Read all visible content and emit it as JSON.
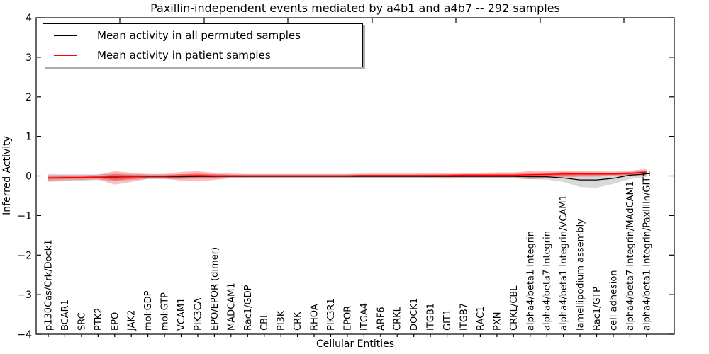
{
  "figure": {
    "title": "Paxillin-independent events mediated by a4b1 and a4b7 -- 292 samples",
    "xlabel": "Cellular Entities",
    "ylabel": "Inferred Activity"
  },
  "legend": {
    "entries": [
      {
        "label": "Mean activity in all permuted samples",
        "color": "#000000"
      },
      {
        "label": "Mean activity in patient samples",
        "color": "#ff0000"
      }
    ]
  },
  "chart_data": {
    "type": "line",
    "title": "Paxillin-independent events mediated by a4b1 and a4b7 -- 292 samples",
    "xlabel": "Cellular Entities",
    "ylabel": "Inferred Activity",
    "ylim": [
      -4,
      4
    ],
    "yticks": [
      4,
      3,
      2,
      1,
      0,
      -1,
      -2,
      -3,
      -4
    ],
    "ytick_labels": [
      "4",
      "3",
      "2",
      "1",
      "0",
      "−1",
      "−2",
      "−3",
      "−4"
    ],
    "grid": false,
    "legend_position": "upper left",
    "zero_reference_line": 0,
    "categories": [
      "p130Cas/Crk/Dock1",
      "BCAR1",
      "SRC",
      "PTK2",
      "EPO",
      "JAK2",
      "mol:GDP",
      "mol:GTP",
      "VCAM1",
      "PIK3CA",
      "EPO/EPOR (dimer)",
      "MADCAM1",
      "Rac1/GDP",
      "CBL",
      "PI3K",
      "CRK",
      "RHOA",
      "PIK3R1",
      "EPOR",
      "ITGA4",
      "ARF6",
      "CRKL",
      "DOCK1",
      "ITGB1",
      "GIT1",
      "ITGB7",
      "RAC1",
      "PXN",
      "CRKL/CBL",
      "alpha4/beta1 Integrin",
      "alpha4/beta7 Integrin",
      "alpha4/beta1 Integrin/VCAM1",
      "lamellipodium assembly",
      "Rac1/GTP",
      "cell adhesion",
      "alpha4/beta7 Integrin/MAdCAM1",
      "alpha4/beta1 Integrin/Paxillin/GIT1"
    ],
    "series": [
      {
        "name": "Mean activity in all permuted samples",
        "color": "#000000",
        "band_color": "#aaaaaa",
        "values": [
          -0.05,
          -0.05,
          -0.04,
          -0.03,
          -0.03,
          -0.02,
          -0.02,
          -0.02,
          -0.02,
          -0.01,
          -0.01,
          -0.01,
          -0.01,
          -0.01,
          -0.01,
          -0.01,
          -0.01,
          -0.01,
          -0.01,
          -0.01,
          -0.01,
          -0.01,
          -0.01,
          -0.01,
          -0.01,
          -0.01,
          -0.01,
          -0.01,
          -0.01,
          -0.02,
          -0.02,
          -0.05,
          -0.1,
          -0.1,
          -0.06,
          0.02,
          0.05
        ],
        "band_low": [
          -0.15,
          -0.13,
          -0.12,
          -0.1,
          -0.12,
          -0.1,
          -0.08,
          -0.08,
          -0.08,
          -0.07,
          -0.07,
          -0.06,
          -0.06,
          -0.06,
          -0.06,
          -0.06,
          -0.06,
          -0.06,
          -0.06,
          -0.06,
          -0.06,
          -0.06,
          -0.06,
          -0.06,
          -0.06,
          -0.06,
          -0.06,
          -0.06,
          -0.06,
          -0.08,
          -0.09,
          -0.15,
          -0.28,
          -0.3,
          -0.2,
          -0.08,
          -0.02
        ],
        "band_high": [
          0.05,
          0.04,
          0.04,
          0.04,
          0.06,
          0.05,
          0.04,
          0.04,
          0.04,
          0.05,
          0.05,
          0.04,
          0.04,
          0.04,
          0.04,
          0.04,
          0.04,
          0.04,
          0.04,
          0.04,
          0.04,
          0.04,
          0.04,
          0.04,
          0.04,
          0.04,
          0.04,
          0.04,
          0.04,
          0.04,
          0.05,
          0.05,
          0.06,
          0.08,
          0.08,
          0.1,
          0.12
        ]
      },
      {
        "name": "Mean activity in patient samples",
        "color": "#ff0000",
        "band_color": "#ff0000",
        "values": [
          -0.05,
          -0.04,
          -0.04,
          -0.03,
          -0.02,
          -0.02,
          -0.01,
          -0.01,
          0.0,
          0.01,
          0.0,
          0.0,
          0.0,
          0.0,
          0.0,
          0.0,
          0.0,
          0.0,
          0.0,
          0.01,
          0.01,
          0.01,
          0.01,
          0.01,
          0.01,
          0.02,
          0.02,
          0.02,
          0.02,
          0.03,
          0.04,
          0.05,
          0.05,
          0.05,
          0.05,
          0.06,
          0.1
        ],
        "band_low": [
          -0.12,
          -0.11,
          -0.1,
          -0.09,
          -0.22,
          -0.15,
          -0.07,
          -0.07,
          -0.12,
          -0.14,
          -0.1,
          -0.06,
          -0.05,
          -0.05,
          -0.05,
          -0.05,
          -0.05,
          -0.05,
          -0.05,
          -0.05,
          -0.05,
          -0.05,
          -0.05,
          -0.06,
          -0.07,
          -0.06,
          -0.05,
          -0.06,
          -0.06,
          -0.08,
          -0.06,
          -0.04,
          -0.02,
          -0.02,
          0.0,
          0.0,
          0.02
        ],
        "band_high": [
          0.02,
          0.02,
          0.02,
          0.03,
          0.12,
          0.08,
          0.05,
          0.05,
          0.1,
          0.12,
          0.08,
          0.06,
          0.05,
          0.05,
          0.05,
          0.05,
          0.05,
          0.05,
          0.05,
          0.06,
          0.06,
          0.06,
          0.06,
          0.07,
          0.08,
          0.08,
          0.08,
          0.09,
          0.09,
          0.12,
          0.13,
          0.14,
          0.13,
          0.12,
          0.11,
          0.13,
          0.18
        ]
      }
    ]
  }
}
